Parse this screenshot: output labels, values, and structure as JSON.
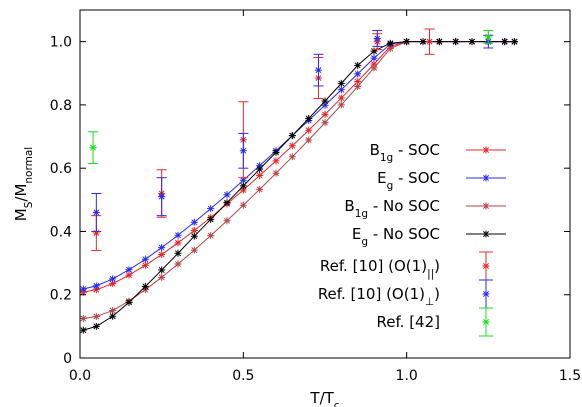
{
  "chart_data": {
    "type": "scatter",
    "title": "",
    "xlabel": {
      "main": "T/T",
      "sub": "c"
    },
    "ylabel": {
      "main1": "M",
      "sub1": "S",
      "main2": "/M",
      "sub2": "normal"
    },
    "xlim": [
      0,
      1.5
    ],
    "ylim": [
      0,
      1.1
    ],
    "xticks": [
      0.0,
      0.5,
      1.0,
      1.5
    ],
    "xtick_labels": [
      "0.0",
      "0.5",
      "1.0",
      "1.5"
    ],
    "yticks": [
      0,
      0.2,
      0.4,
      0.6,
      0.8,
      1.0
    ],
    "ytick_labels": [
      "0",
      "0.2",
      "0.4",
      "0.6",
      "0.8",
      "1.0"
    ],
    "grid": false,
    "legend_position": "right",
    "series": [
      {
        "name": "B1g - SOC",
        "legend_main": "B",
        "legend_sub": "1g",
        "legend_tail": " - SOC",
        "color": "#e8262a",
        "style": "line-star",
        "x": [
          0.01,
          0.05,
          0.1,
          0.15,
          0.2,
          0.25,
          0.3,
          0.35,
          0.4,
          0.45,
          0.5,
          0.55,
          0.6,
          0.65,
          0.7,
          0.75,
          0.8,
          0.85,
          0.9,
          0.95,
          1.0,
          1.05,
          1.1,
          1.15,
          1.2,
          1.25,
          1.3,
          1.33
        ],
        "y": [
          0.208,
          0.216,
          0.235,
          0.262,
          0.293,
          0.327,
          0.364,
          0.403,
          0.444,
          0.487,
          0.531,
          0.577,
          0.623,
          0.671,
          0.72,
          0.77,
          0.822,
          0.874,
          0.929,
          0.985,
          1.0,
          1.0,
          1.0,
          1.0,
          1.0,
          1.0,
          1.0,
          1.0
        ]
      },
      {
        "name": "Eg - SOC",
        "legend_main": "E",
        "legend_sub": "g",
        "legend_tail": " - SOC",
        "color": "#2b2bf0",
        "style": "line-star",
        "x": [
          0.01,
          0.05,
          0.1,
          0.15,
          0.2,
          0.25,
          0.3,
          0.35,
          0.4,
          0.45,
          0.5,
          0.55,
          0.6,
          0.65,
          0.7,
          0.75,
          0.8,
          0.85,
          0.9,
          0.95,
          1.0,
          1.05,
          1.1,
          1.15,
          1.2,
          1.25,
          1.3,
          1.33
        ],
        "y": [
          0.218,
          0.228,
          0.25,
          0.279,
          0.312,
          0.349,
          0.388,
          0.429,
          0.472,
          0.516,
          0.562,
          0.608,
          0.655,
          0.703,
          0.751,
          0.799,
          0.848,
          0.898,
          0.948,
          0.992,
          1.0,
          1.0,
          1.0,
          1.0,
          1.0,
          1.0,
          1.0,
          1.0
        ]
      },
      {
        "name": "B1g - No SOC",
        "legend_main": "B",
        "legend_sub": "1g",
        "legend_tail": " - No SOC",
        "color": "#b54646",
        "style": "line-star",
        "x": [
          0.01,
          0.05,
          0.1,
          0.15,
          0.2,
          0.25,
          0.3,
          0.35,
          0.4,
          0.45,
          0.5,
          0.55,
          0.6,
          0.65,
          0.7,
          0.75,
          0.8,
          0.85,
          0.9,
          0.95,
          1.0,
          1.05,
          1.1,
          1.15,
          1.2,
          1.25,
          1.3,
          1.33
        ],
        "y": [
          0.125,
          0.131,
          0.15,
          0.18,
          0.216,
          0.255,
          0.297,
          0.341,
          0.387,
          0.434,
          0.483,
          0.533,
          0.584,
          0.636,
          0.689,
          0.744,
          0.8,
          0.858,
          0.917,
          0.978,
          1.0,
          1.0,
          1.0,
          1.0,
          1.0,
          1.0,
          1.0,
          1.0
        ]
      },
      {
        "name": "Eg - No SOC",
        "legend_main": "E",
        "legend_sub": "g",
        "legend_tail": " - No SOC",
        "color": "#000000",
        "style": "line-star",
        "x": [
          0.01,
          0.05,
          0.1,
          0.15,
          0.2,
          0.25,
          0.3,
          0.35,
          0.4,
          0.45,
          0.5,
          0.55,
          0.6,
          0.65,
          0.7,
          0.75,
          0.8,
          0.85,
          0.9,
          0.95,
          1.0,
          1.05,
          1.1,
          1.15,
          1.2,
          1.25,
          1.3,
          1.33
        ],
        "y": [
          0.088,
          0.1,
          0.132,
          0.176,
          0.226,
          0.278,
          0.331,
          0.385,
          0.438,
          0.491,
          0.544,
          0.597,
          0.65,
          0.703,
          0.757,
          0.812,
          0.868,
          0.925,
          0.97,
          0.995,
          1.0,
          1.0,
          1.0,
          1.0,
          1.0,
          1.0,
          1.0,
          1.0
        ]
      },
      {
        "name": "Ref. [10] (O(1)||)",
        "legend_text": "Ref. [10] (O(1)",
        "legend_sub": "||",
        "legend_tail": ")",
        "color": "#e8262a",
        "style": "errorbar",
        "points": [
          {
            "x": 0.05,
            "y": 0.395,
            "err": 0.055
          },
          {
            "x": 0.25,
            "y": 0.52,
            "err": 0.075
          },
          {
            "x": 0.5,
            "y": 0.69,
            "err": 0.12
          },
          {
            "x": 0.73,
            "y": 0.885,
            "err": 0.065
          },
          {
            "x": 0.91,
            "y": 1.0,
            "err": 0.025
          },
          {
            "x": 1.07,
            "y": 1.0,
            "err": 0.04
          }
        ]
      },
      {
        "name": "Ref. [10] (O(1)⊥)",
        "legend_text": "Ref. [10] (O(1)",
        "legend_sub": "⊥",
        "legend_tail": ")",
        "color": "#2b2bf0",
        "style": "errorbar",
        "points": [
          {
            "x": 0.05,
            "y": 0.46,
            "err": 0.06
          },
          {
            "x": 0.25,
            "y": 0.51,
            "err": 0.06
          },
          {
            "x": 0.5,
            "y": 0.655,
            "err": 0.055
          },
          {
            "x": 0.73,
            "y": 0.91,
            "err": 0.05
          },
          {
            "x": 0.91,
            "y": 1.01,
            "err": 0.025
          },
          {
            "x": 1.25,
            "y": 1.0,
            "err": 0.02
          }
        ]
      },
      {
        "name": "Ref. [42]",
        "legend_text": "Ref. [42]",
        "legend_sub": "",
        "legend_tail": "",
        "color": "#1adc1a",
        "style": "errorbar",
        "points": [
          {
            "x": 0.04,
            "y": 0.665,
            "err": 0.05
          },
          {
            "x": 1.25,
            "y": 1.015,
            "err": 0.02
          }
        ]
      }
    ]
  }
}
